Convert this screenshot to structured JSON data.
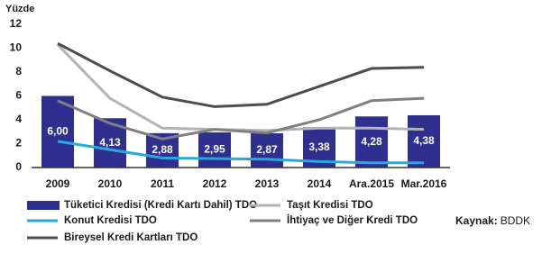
{
  "chart_data": {
    "type": "bar",
    "y_label": "Yüzde",
    "categories": [
      "2009",
      "2010",
      "2011",
      "2012",
      "2013",
      "2014",
      "Ara.2015",
      "Mar.2016"
    ],
    "series": [
      {
        "name": "Tüketici Kredisi (Kredi Kartı Dahil) TDO",
        "type": "bar",
        "color": "#2e2f8f",
        "values": [
          6.0,
          4.13,
          2.88,
          2.95,
          2.87,
          3.38,
          4.28,
          4.38
        ],
        "value_labels": [
          "6,00",
          "4,13",
          "2,88",
          "2,95",
          "2,87",
          "3,38",
          "4,28",
          "4,38"
        ]
      },
      {
        "name": "Taşıt Kredisi TDO",
        "type": "line",
        "color": "#b3b3b3",
        "values": [
          10.3,
          5.8,
          3.3,
          3.2,
          3.1,
          3.3,
          3.3,
          3.2
        ]
      },
      {
        "name": "Konut Kredisi TDO",
        "type": "line",
        "color": "#29a8e0",
        "values": [
          2.2,
          1.5,
          0.8,
          0.75,
          0.7,
          0.5,
          0.4,
          0.4
        ]
      },
      {
        "name": "İhtiyaç ve Diğer Kredi TDO",
        "type": "line",
        "color": "#808080",
        "values": [
          5.6,
          3.7,
          2.4,
          3.2,
          2.9,
          4.0,
          5.6,
          5.8
        ]
      },
      {
        "name": "Bireysel Kredi Kartları TDO",
        "type": "line",
        "color": "#4d4d4d",
        "values": [
          10.4,
          8.1,
          5.9,
          5.1,
          5.3,
          6.8,
          8.3,
          8.4
        ]
      }
    ],
    "ylim": [
      0,
      12
    ],
    "yticks": [
      0,
      2,
      4,
      6,
      8,
      10,
      12
    ],
    "grid": false,
    "source": {
      "label": "Kaynak:",
      "text": "BDDK"
    }
  }
}
